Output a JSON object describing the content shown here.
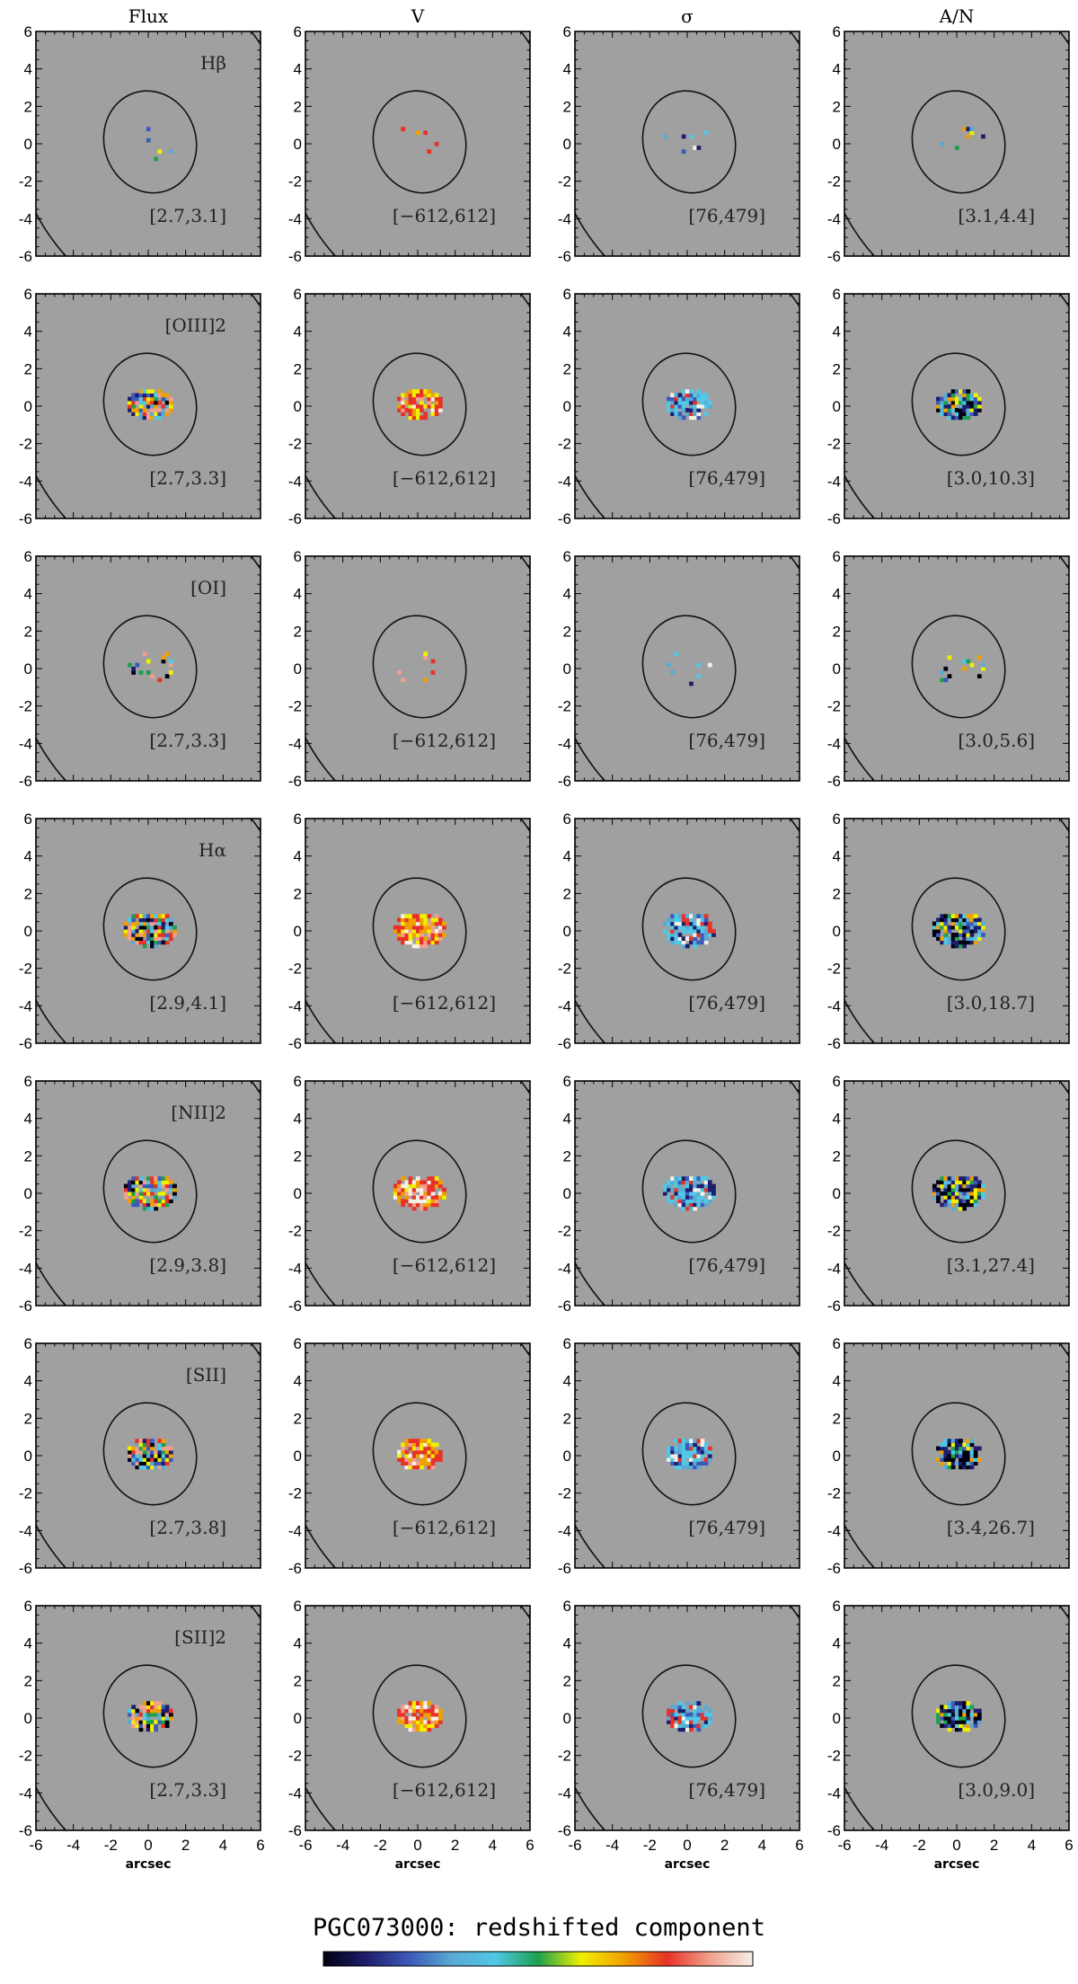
{
  "figure": {
    "title": "PGC073000: redshifted component",
    "columns": [
      "Flux",
      "V",
      "σ",
      "A/N"
    ],
    "axis_label": "arcsec",
    "colors": {
      "background": "#a0a0a0",
      "colorbar": [
        "#000010",
        "#1e1e6e",
        "#3c5ab8",
        "#5aaad2",
        "#50c8e6",
        "#1ea050",
        "#f0f000",
        "#f0a000",
        "#e63228",
        "#f0a08c",
        "#f5f0e6"
      ]
    }
  },
  "chart_data": {
    "type": "heatmap",
    "xlabel": "arcsec",
    "xlim": [
      -6,
      6
    ],
    "ylim": [
      -6,
      6
    ],
    "x_ticks": [
      -6,
      -4,
      -2,
      0,
      2,
      4,
      6
    ],
    "y_ticks": [
      -6,
      -4,
      -2,
      0,
      2,
      4,
      6
    ],
    "rows": [
      {
        "line": "Hβ",
        "ranges": [
          "[2.7,3.1]",
          "[−612,612]",
          "[76,479]",
          "[3.1,4.4]"
        ],
        "extent": 0.35
      },
      {
        "line": "[OIII]2",
        "ranges": [
          "[2.7,3.3]",
          "[−612,612]",
          "[76,479]",
          "[3.0,10.3]"
        ],
        "extent": 0.85
      },
      {
        "line": "[OI]",
        "ranges": [
          "[2.7,3.3]",
          "[−612,612]",
          "[76,479]",
          "[3.0,5.6]"
        ],
        "extent": 0.45
      },
      {
        "line": "Hα",
        "ranges": [
          "[2.9,4.1]",
          "[−612,612]",
          "[76,479]",
          "[3.0,18.7]"
        ],
        "extent": 1.0
      },
      {
        "line": "[NII]2",
        "ranges": [
          "[2.9,3.8]",
          "[−612,612]",
          "[76,479]",
          "[3.1,27.4]"
        ],
        "extent": 1.0
      },
      {
        "line": "[SII]",
        "ranges": [
          "[2.7,3.8]",
          "[−612,612]",
          "[76,479]",
          "[3.4,26.7]"
        ],
        "extent": 0.9
      },
      {
        "line": "[SII]2",
        "ranges": [
          "[2.7,3.3]",
          "[−612,612]",
          "[76,479]",
          "[3.0,9.0]"
        ],
        "extent": 0.85
      }
    ]
  }
}
